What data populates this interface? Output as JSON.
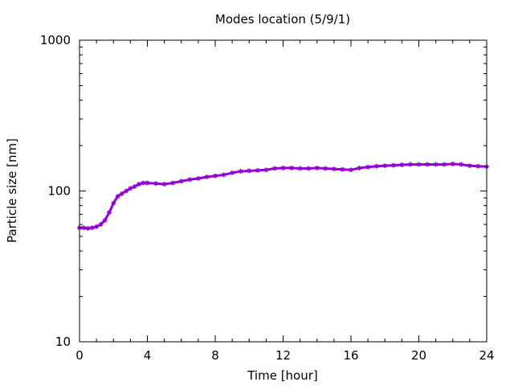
{
  "chart_data": {
    "type": "line",
    "title": "Modes location (5/9/1)",
    "xlabel": "Time [hour]",
    "ylabel": "Particle size [nm]",
    "xlim": [
      0,
      24
    ],
    "ylim": [
      10,
      1000
    ],
    "yscale": "log",
    "xticks": [
      0,
      4,
      8,
      12,
      16,
      20,
      24
    ],
    "xtick_labels": [
      "0",
      "4",
      "8",
      "12",
      "16",
      "20",
      "24"
    ],
    "yticks": [
      10,
      100,
      1000
    ],
    "ytick_labels": [
      "10",
      "100",
      "1000"
    ],
    "grid": false,
    "legend": "none",
    "series": [
      {
        "color": "#9400d3",
        "marker": "star",
        "x": [
          0,
          0.25,
          0.5,
          0.75,
          1,
          1.25,
          1.5,
          1.75,
          2,
          2.25,
          2.5,
          2.75,
          3,
          3.25,
          3.5,
          3.75,
          4,
          4.5,
          5,
          5.5,
          6,
          6.5,
          7,
          7.5,
          8,
          8.5,
          9,
          9.5,
          10,
          10.5,
          11,
          11.5,
          12,
          12.5,
          13,
          13.5,
          14,
          14.5,
          15,
          15.5,
          16,
          16.5,
          17,
          17.5,
          18,
          18.5,
          19,
          19.5,
          20,
          20.5,
          21,
          21.5,
          22,
          22.5,
          23,
          23.5,
          24
        ],
        "y": [
          57,
          57,
          56.5,
          57,
          58,
          60,
          64,
          72,
          83,
          92,
          96,
          100,
          104,
          107,
          111,
          113,
          113,
          112,
          111,
          113,
          116,
          119,
          121,
          124,
          126,
          128,
          132,
          135,
          136,
          137,
          138,
          141,
          142,
          142,
          141,
          141,
          142,
          141,
          140,
          139,
          138,
          142,
          144,
          146,
          147,
          148,
          149,
          150,
          150,
          150,
          150,
          150,
          151,
          150,
          147,
          146,
          145
        ]
      }
    ]
  }
}
